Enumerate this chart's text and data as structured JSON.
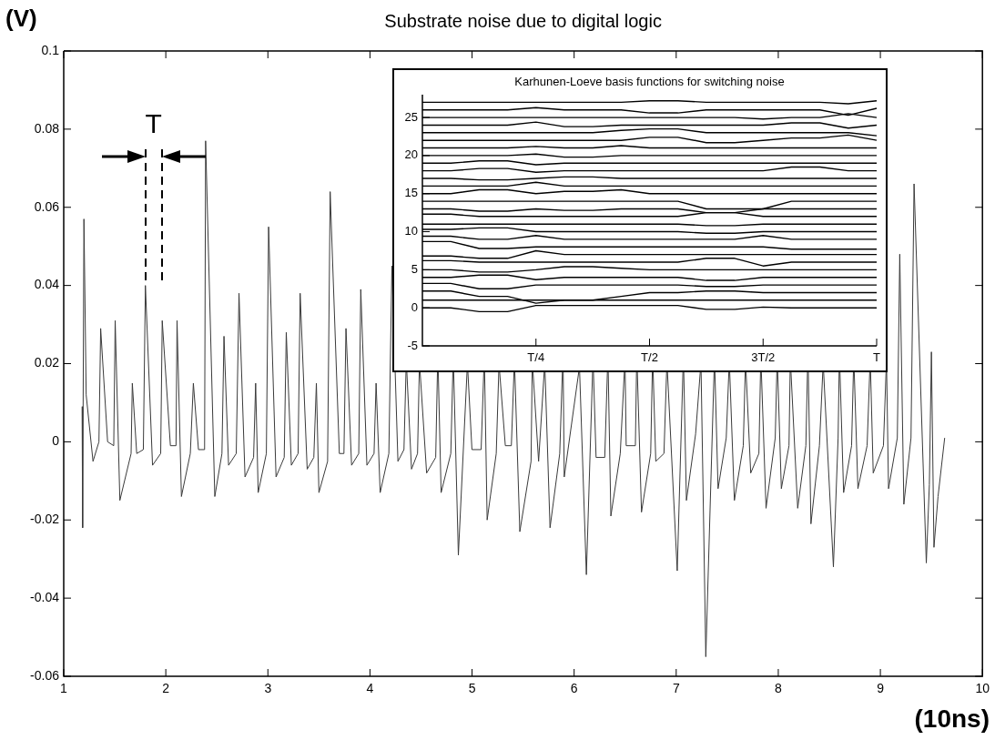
{
  "chart_data": [
    {
      "type": "line",
      "title": "Substrate noise due to digital logic",
      "xlabel": "(10ns)",
      "ylabel": "(V)",
      "x": [
        1.18,
        1.185,
        1.198,
        1.22,
        1.287,
        1.345,
        1.362,
        1.43,
        1.49,
        1.504,
        1.55,
        1.66,
        1.672,
        1.715,
        1.78,
        1.8,
        1.87,
        1.95,
        1.965,
        2.045,
        2.1,
        2.11,
        2.153,
        2.24,
        2.27,
        2.32,
        2.38,
        2.39,
        2.48,
        2.55,
        2.57,
        2.615,
        2.69,
        2.717,
        2.776,
        2.86,
        2.88,
        2.905,
        2.985,
        3.007,
        3.08,
        3.16,
        3.18,
        3.23,
        3.296,
        3.316,
        3.385,
        3.45,
        3.475,
        3.5,
        3.585,
        3.61,
        3.7,
        3.745,
        3.765,
        3.82,
        3.89,
        3.91,
        3.97,
        4.04,
        4.06,
        4.1,
        4.185,
        4.215,
        4.274,
        4.333,
        4.353,
        4.357,
        4.361,
        4.407,
        4.466,
        4.483,
        4.487,
        4.491,
        4.555,
        4.644,
        4.661,
        4.665,
        4.669,
        4.697,
        4.792,
        4.812,
        4.816,
        4.82,
        4.866,
        4.951,
        4.955,
        4.959,
        4.999,
        5.089,
        5.115,
        5.119,
        5.123,
        5.148,
        5.237,
        5.262,
        5.266,
        5.27,
        5.326,
        5.385,
        5.411,
        5.415,
        5.419,
        5.468,
        5.578,
        5.589,
        5.593,
        5.597,
        5.652,
        5.707,
        5.711,
        5.715,
        5.764,
        5.859,
        5.885,
        5.889,
        5.893,
        5.903,
        6.046,
        6.05,
        6.054,
        6.12,
        6.181,
        6.185,
        6.189,
        6.215,
        6.3,
        6.326,
        6.33,
        6.334,
        6.36,
        6.452,
        6.492,
        6.496,
        6.5,
        6.51,
        6.6,
        6.611,
        6.615,
        6.619,
        6.66,
        6.75,
        6.766,
        6.77,
        6.774,
        6.8,
        6.88,
        6.906,
        6.91,
        6.914,
        7.01,
        7.066,
        7.07,
        7.074,
        7.1,
        7.19,
        7.236,
        7.24,
        7.244,
        7.29,
        7.371,
        7.375,
        7.379,
        7.41,
        7.49,
        7.516,
        7.52,
        7.524,
        7.57,
        7.657,
        7.676,
        7.68,
        7.684,
        7.73,
        7.81,
        7.826,
        7.83,
        7.834,
        7.88,
        7.97,
        7.986,
        7.99,
        7.994,
        8.03,
        8.105,
        8.116,
        8.12,
        8.124,
        8.19,
        8.27,
        8.286,
        8.29,
        8.294,
        8.32,
        8.403,
        8.436,
        8.44,
        8.444,
        8.54,
        8.586,
        8.596,
        8.6,
        8.604,
        8.64,
        8.718,
        8.736,
        8.74,
        8.744,
        8.78,
        8.87,
        8.896,
        8.9,
        8.904,
        8.93,
        9.03,
        9.06,
        9.08,
        9.166,
        9.19,
        9.23,
        9.3,
        9.33,
        9.45,
        9.48,
        9.5,
        9.525,
        9.565,
        9.63
      ],
      "values": [
        0.009,
        -0.022,
        0.057,
        0.012,
        -0.005,
        0,
        0.029,
        0,
        -0.001,
        0.031,
        -0.015,
        -0.003,
        0.015,
        -0.003,
        -0.002,
        0.04,
        -0.006,
        -0.003,
        0.031,
        -0.001,
        -0.001,
        0.031,
        -0.014,
        -0.003,
        0.015,
        -0.002,
        -0.002,
        0.077,
        -0.014,
        -0.003,
        0.027,
        -0.006,
        -0.003,
        0.038,
        -0.009,
        -0.004,
        0.015,
        -0.013,
        -0.003,
        0.055,
        -0.009,
        -0.004,
        0.028,
        -0.006,
        -0.003,
        0.038,
        -0.007,
        -0.004,
        0.015,
        -0.013,
        -0.005,
        0.064,
        -0.003,
        -0.003,
        0.029,
        -0.006,
        -0.003,
        0.039,
        -0.006,
        -0.003,
        0.015,
        -0.013,
        -0.003,
        0.045,
        -0.005,
        -0.002,
        0.018,
        null,
        0.018,
        -0.007,
        -0.003,
        0.018,
        null,
        0.018,
        -0.008,
        -0.004,
        0.018,
        null,
        0.018,
        -0.013,
        -0.003,
        0.018,
        null,
        0.018,
        -0.029,
        0.018,
        null,
        0.018,
        -0.002,
        -0.002,
        0.018,
        null,
        0.018,
        -0.02,
        -0.003,
        0.018,
        null,
        0.018,
        -0.001,
        -0.001,
        0.018,
        null,
        0.018,
        -0.023,
        -0.005,
        0.018,
        null,
        0.018,
        -0.005,
        0.018,
        null,
        0.018,
        -0.022,
        -0.003,
        0.018,
        null,
        0.018,
        -0.009,
        0.018,
        null,
        0.018,
        -0.034,
        0.018,
        null,
        0.018,
        -0.004,
        -0.004,
        0.018,
        null,
        0.018,
        -0.019,
        -0.003,
        0.018,
        null,
        0.018,
        -0.001,
        -0.001,
        0.018,
        null,
        0.018,
        -0.018,
        -0.003,
        0.018,
        null,
        0.018,
        -0.005,
        -0.003,
        0.018,
        null,
        0.018,
        -0.033,
        0.018,
        null,
        0.018,
        -0.015,
        0.002,
        0.018,
        null,
        0.018,
        -0.055,
        0.018,
        null,
        0.018,
        -0.012,
        0.001,
        0.018,
        null,
        0.018,
        -0.015,
        -0.001,
        0.018,
        null,
        0.018,
        -0.008,
        -0.003,
        0.018,
        null,
        0.018,
        -0.017,
        0.001,
        0.018,
        null,
        0.018,
        -0.012,
        -0.001,
        0.018,
        null,
        0.018,
        -0.017,
        -0.001,
        0.018,
        null,
        0.018,
        -0.021,
        -0.001,
        0.018,
        null,
        0.018,
        -0.032,
        0.001,
        0.018,
        null,
        0.018,
        -0.013,
        -0.001,
        0.018,
        null,
        0.018,
        -0.012,
        -0.001,
        0.018,
        null,
        0.018,
        -0.008,
        -0.001,
        0.021,
        -0.012,
        0.001,
        0.048,
        -0.016,
        0.001,
        0.066,
        -0.031,
        -0.011,
        0.023,
        -0.027,
        -0.014,
        0.001
      ],
      "color": "#3a3a3a",
      "xlim": [
        1,
        10
      ],
      "xticks": [
        1,
        2,
        3,
        4,
        5,
        6,
        7,
        8,
        9,
        10
      ],
      "ylim": [
        -0.06,
        0.1
      ],
      "yticks": [
        -0.06,
        -0.04,
        -0.02,
        0,
        0.02,
        0.04,
        0.06,
        0.08,
        0.1
      ],
      "annotations": [
        {
          "text": "T",
          "x": 1.8,
          "y": 0.04
        }
      ]
    },
    {
      "type": "line",
      "title": "Karhunen-Loeve basis functions for switching noise",
      "categories": [
        null,
        null,
        null,
        null,
        "T/4",
        null,
        null,
        null,
        "T/2",
        null,
        null,
        null,
        "3T/2",
        null,
        null,
        null,
        "T"
      ],
      "series": [
        {
          "color": "#000000",
          "values": [
            0,
            0,
            -0.5,
            -0.5,
            0.3,
            0.3,
            0.3,
            0.3,
            0.3,
            0.3,
            -0.2,
            -0.2,
            0.1,
            0,
            0,
            0,
            0
          ]
        },
        {
          "color": "#000000",
          "values": [
            1,
            1,
            1,
            1,
            1,
            1,
            1,
            1,
            1,
            1,
            1,
            1,
            1,
            1,
            1,
            1,
            1
          ]
        },
        {
          "color": "#000000",
          "values": [
            2.2,
            2.2,
            1.5,
            1.5,
            0.6,
            1,
            1,
            1.5,
            2,
            2,
            2.2,
            2.2,
            2,
            2,
            2,
            2,
            2
          ]
        },
        {
          "color": "#000000",
          "values": [
            3.2,
            3.2,
            2.5,
            2.5,
            3,
            3,
            3,
            3,
            3,
            3,
            2.8,
            2.8,
            3,
            3,
            3,
            3,
            3
          ]
        },
        {
          "color": "#000000",
          "values": [
            4,
            4,
            4.3,
            4.3,
            3.7,
            4,
            4,
            4,
            4,
            4,
            3.6,
            3.6,
            4,
            4,
            4,
            4,
            4
          ]
        },
        {
          "color": "#000000",
          "values": [
            5,
            5,
            4.7,
            4.7,
            5,
            5.4,
            5.4,
            5.2,
            5,
            5,
            5,
            5,
            5,
            5,
            5,
            5,
            5
          ]
        },
        {
          "color": "#000000",
          "values": [
            6.2,
            6.2,
            6,
            6,
            6,
            6,
            6,
            6,
            6,
            6,
            6.5,
            6.5,
            5.5,
            6,
            6,
            6,
            6
          ]
        },
        {
          "color": "#000000",
          "values": [
            6.8,
            6.8,
            6.5,
            6.5,
            7.5,
            7,
            7,
            7,
            7,
            7,
            7,
            7,
            7,
            7,
            7,
            7,
            7
          ]
        },
        {
          "color": "#000000",
          "values": [
            8.7,
            8.7,
            7.8,
            7.8,
            8,
            8,
            8,
            8,
            8,
            8,
            8,
            8,
            8,
            7.7,
            7.7,
            7.7,
            7.7
          ]
        },
        {
          "color": "#000000",
          "values": [
            9.4,
            9.4,
            9,
            9,
            9.5,
            9,
            9,
            9,
            9,
            9,
            9,
            9,
            9.5,
            9,
            9,
            9,
            9
          ]
        },
        {
          "color": "#000000",
          "values": [
            10.3,
            10.3,
            10.5,
            10.5,
            10,
            10,
            10,
            10,
            10,
            10,
            9.8,
            9.8,
            10,
            10,
            10,
            10,
            10
          ]
        },
        {
          "color": "#000000",
          "values": [
            11,
            11,
            11,
            11,
            11,
            11,
            11,
            11,
            11,
            11,
            10.8,
            10.8,
            11,
            11,
            11,
            11,
            11
          ]
        },
        {
          "color": "#000000",
          "values": [
            12.3,
            12.3,
            12,
            12,
            12,
            12,
            12,
            12,
            12,
            12,
            12.5,
            12.5,
            12,
            12,
            12,
            12,
            12
          ]
        },
        {
          "color": "#000000",
          "values": [
            13,
            13,
            12.7,
            12.7,
            13,
            12.8,
            12.8,
            13,
            13,
            13,
            12.5,
            12.5,
            13,
            13,
            13,
            13,
            13
          ]
        },
        {
          "color": "#000000",
          "values": [
            14,
            14,
            14,
            14,
            14,
            14,
            14,
            14,
            14,
            14,
            13,
            13,
            13,
            14,
            14,
            14,
            14
          ]
        },
        {
          "color": "#000000",
          "values": [
            15,
            15,
            15.5,
            15.5,
            15,
            15.3,
            15.3,
            15.5,
            15,
            15,
            15,
            15,
            15,
            15,
            15,
            15,
            15
          ]
        },
        {
          "color": "#000000",
          "values": [
            16,
            16,
            16,
            16,
            16.5,
            16,
            16,
            16,
            16,
            16,
            16,
            16,
            16,
            16,
            16,
            16,
            16
          ]
        },
        {
          "color": "#000000",
          "values": [
            17,
            17,
            16.8,
            16.8,
            17,
            17.2,
            17.2,
            17,
            17,
            17,
            17,
            17,
            17,
            17,
            17,
            17,
            17
          ]
        },
        {
          "color": "#000000",
          "values": [
            18,
            18,
            18.3,
            18.3,
            17.8,
            18,
            18,
            18,
            18,
            18,
            18,
            18,
            18,
            18.5,
            18.5,
            18,
            18
          ]
        },
        {
          "color": "#000000",
          "values": [
            19,
            19,
            19.3,
            19.3,
            18.8,
            19,
            19,
            19,
            19,
            19,
            19,
            19,
            19,
            19,
            19,
            19,
            19
          ]
        },
        {
          "color": "#000000",
          "values": [
            20,
            20,
            20,
            20,
            20.2,
            19.8,
            19.8,
            20,
            20,
            20,
            20,
            20,
            20,
            20,
            20,
            20,
            20
          ]
        },
        {
          "color": "#000000",
          "values": [
            21,
            21,
            21,
            21,
            21.2,
            21,
            21,
            21.3,
            21,
            21,
            21,
            21,
            21,
            21,
            21,
            21,
            21
          ]
        },
        {
          "color": "#000000",
          "values": [
            22,
            22,
            22,
            22,
            22,
            22,
            22,
            22,
            22.4,
            22.4,
            21.7,
            21.7,
            22,
            22.3,
            22.3,
            22.7,
            22
          ]
        },
        {
          "color": "#000000",
          "values": [
            23,
            23,
            23,
            23,
            23,
            23,
            23,
            23.3,
            23.5,
            23.5,
            23,
            23,
            23,
            23,
            23,
            23,
            22.6
          ]
        },
        {
          "color": "#000000",
          "values": [
            24,
            24,
            24,
            24,
            24.4,
            23.8,
            23.8,
            24,
            24,
            24,
            24,
            24,
            24,
            24.3,
            24.3,
            23.6,
            24
          ]
        },
        {
          "color": "#000000",
          "values": [
            25,
            25,
            25,
            25,
            25,
            25,
            25,
            25,
            25,
            25,
            25,
            25,
            24.8,
            25,
            25,
            25.5,
            25
          ]
        },
        {
          "color": "#000000",
          "values": [
            26,
            26,
            26,
            26,
            26.3,
            26,
            26,
            26,
            25.6,
            25.6,
            26,
            26,
            26,
            26,
            26,
            25.3,
            26.2
          ]
        },
        {
          "color": "#000000",
          "values": [
            27,
            27,
            27,
            27,
            27,
            27,
            27,
            27,
            27.2,
            27.2,
            27,
            27,
            27,
            27,
            27,
            26.8,
            27.2
          ]
        }
      ],
      "ylim": [
        -5,
        28
      ],
      "yticks": [
        -5,
        0,
        5,
        10,
        15,
        20,
        25
      ]
    }
  ]
}
